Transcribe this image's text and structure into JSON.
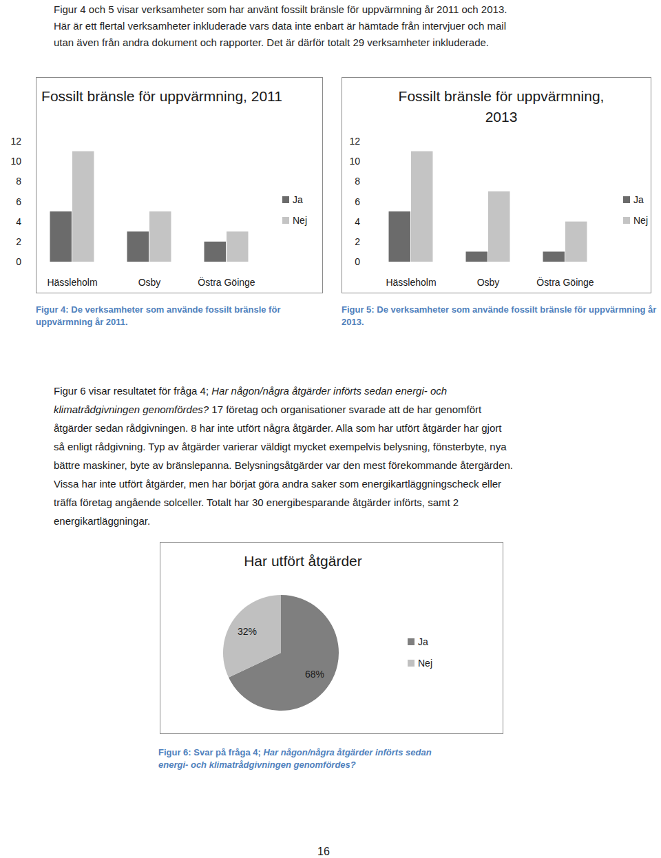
{
  "intro": {
    "lines": [
      [
        {
          "text": "Figur 4 och 5 visar verksamheter som har använt fossilt bränsle för uppvärmning år 2011 och 2013.",
          "italic": false
        }
      ],
      [
        {
          "text": "Här är ett flertal verksamheter inkluderade vars data inte enbart är hämtade från intervjuer och mail",
          "italic": false
        }
      ],
      [
        {
          "text": "utan även från andra dokument och rapporter. Det är därför totalt 29 verksamheter inkluderade.",
          "italic": false
        }
      ]
    ]
  },
  "chart_data": [
    {
      "type": "bar",
      "title": "Fossilt bränsle för uppvärmning, 2011",
      "categories": [
        "Hässleholm",
        "Osby",
        "Östra Göinge"
      ],
      "series": [
        {
          "name": "Ja",
          "color": "#6b6b6b",
          "values": [
            5,
            3,
            2
          ]
        },
        {
          "name": "Nej",
          "color": "#c4c4c4",
          "values": [
            11,
            5,
            3
          ]
        }
      ],
      "ylim": [
        0,
        12
      ],
      "yticks": [
        0,
        2,
        4,
        6,
        8,
        10,
        12
      ],
      "grid": false,
      "legend": "right"
    },
    {
      "type": "bar",
      "title": "Fossilt bränsle för uppvärmning, 2013",
      "categories": [
        "Hässleholm",
        "Osby",
        "Östra Göinge"
      ],
      "series": [
        {
          "name": "Ja",
          "color": "#6b6b6b",
          "values": [
            5,
            1,
            1
          ]
        },
        {
          "name": "Nej",
          "color": "#c4c4c4",
          "values": [
            11,
            7,
            4
          ]
        }
      ],
      "ylim": [
        0,
        12
      ],
      "yticks": [
        0,
        2,
        4,
        6,
        8,
        10,
        12
      ],
      "grid": false,
      "legend": "right"
    },
    {
      "type": "pie",
      "title": "Har utfört åtgärder",
      "categories": [
        "Ja",
        "Nej"
      ],
      "values": [
        68,
        32
      ],
      "value_labels": [
        "68%",
        "32%"
      ],
      "colors": [
        "#7f7f7f",
        "#c0c0c0"
      ],
      "data_labels": true,
      "legend": "right"
    }
  ],
  "captions": [
    [
      {
        "text": "Figur 4: De verksamheter som använde fossilt bränsle för uppvärmning år 2011.",
        "italic": false
      }
    ],
    [
      {
        "text": "Figur 5: De verksamheter som använde fossilt bränsle för uppvärmning år 2013.",
        "italic": false
      }
    ],
    [
      {
        "text": "Figur 6: Svar på fråga 4; ",
        "italic": false
      },
      {
        "text": "Har någon/några åtgärder införts sedan energi- och klimatrådgivningen genomfördes?",
        "italic": true
      }
    ]
  ],
  "body": {
    "lines": [
      [
        {
          "text": "Figur 6 visar resultatet för fråga 4; ",
          "italic": false
        },
        {
          "text": "Har någon/några åtgärder införts sedan energi- och",
          "italic": true
        }
      ],
      [
        {
          "text": "klimatrådgivningen genomfördes?",
          "italic": true
        },
        {
          "text": " 17 företag och organisationer svarade att de har genomfört",
          "italic": false
        }
      ],
      [
        {
          "text": "åtgärder sedan rådgivningen. 8 har inte utfört några åtgärder. Alla som har utfört åtgärder har gjort",
          "italic": false
        }
      ],
      [
        {
          "text": "så enligt rådgivning. Typ av åtgärder varierar väldigt mycket exempelvis belysning, fönsterbyte, nya",
          "italic": false
        }
      ],
      [
        {
          "text": "bättre maskiner, byte av bränslepanna. Belysningsåtgärder var den mest förekommande återgärden.",
          "italic": false
        }
      ],
      [
        {
          "text": "Vissa har inte utfört åtgärder, men har börjat göra andra saker som energikartläggningscheck eller",
          "italic": false
        }
      ],
      [
        {
          "text": "träffa företag angående solceller. Totalt har 30 energibesparande åtgärder införts, samt 2",
          "italic": false
        }
      ],
      [
        {
          "text": "energikartläggningar.",
          "italic": false
        }
      ]
    ]
  },
  "page_number": "16"
}
